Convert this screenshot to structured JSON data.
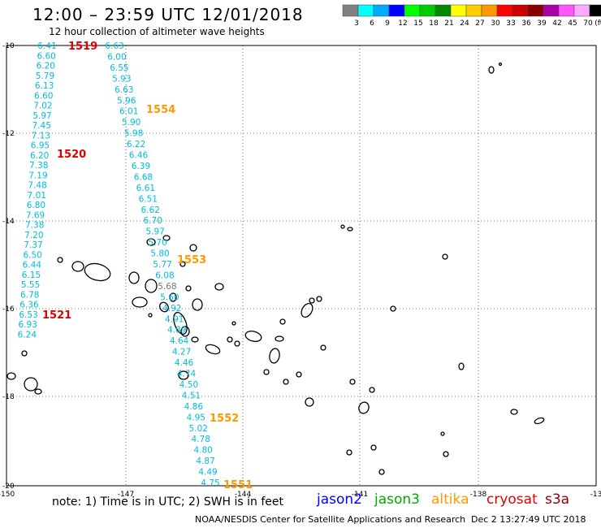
{
  "header": {
    "title": "12:00 – 23:59 UTC 12/01/2018",
    "subtitle": "12 hour collection of altimeter wave heights"
  },
  "legend": {
    "unit_label": "(ft)",
    "bins": [
      {
        "label": "3",
        "color": "#808080"
      },
      {
        "label": "6",
        "color": "#00ffff"
      },
      {
        "label": "9",
        "color": "#00aaff"
      },
      {
        "label": "12",
        "color": "#0000ff"
      },
      {
        "label": "15",
        "color": "#00ff00"
      },
      {
        "label": "18",
        "color": "#00cc00"
      },
      {
        "label": "21",
        "color": "#008800"
      },
      {
        "label": "24",
        "color": "#ffff00"
      },
      {
        "label": "27",
        "color": "#ffcc00"
      },
      {
        "label": "30",
        "color": "#ff9900"
      },
      {
        "label": "33",
        "color": "#ff0000"
      },
      {
        "label": "36",
        "color": "#cc0000"
      },
      {
        "label": "39",
        "color": "#880000"
      },
      {
        "label": "42",
        "color": "#aa00aa"
      },
      {
        "label": "45",
        "color": "#ff55ff"
      },
      {
        "label": "70",
        "color": "#ffaaff"
      },
      {
        "label": "",
        "color": "#000000"
      }
    ]
  },
  "map": {
    "lon_labels": [
      "-150",
      "-147",
      "-144",
      "-141",
      "-138",
      "-13"
    ],
    "lat_labels": [
      "-10",
      "-12",
      "-14",
      "-16",
      "-18",
      "-20"
    ]
  },
  "tracks": [
    {
      "name": "track-1519-1521",
      "color": "#00bbdd",
      "values": [
        "6.41",
        "6.60",
        "6.20",
        "5.79",
        "6.13",
        "6.60",
        "7.02",
        "5.97",
        "7.45",
        "7.13",
        "6.95",
        "6.20",
        "7.38",
        "7.19",
        "7.48",
        "7.01",
        "6.80",
        "7.69",
        "7.38",
        "7.20",
        "7.37",
        "6.50",
        "6.44",
        "6.15",
        "5.55",
        "6.78",
        "6.36",
        "6.53",
        "6.93",
        "6.24"
      ]
    },
    {
      "name": "track-1554-1551",
      "color": "#00bbdd",
      "values": [
        "6.63",
        "6.00",
        "6.55",
        "5.93",
        "6.63",
        "5.96",
        "6.01",
        "5.90",
        "5.98",
        "6.22",
        "6.46",
        "6.39",
        "6.68",
        "6.61",
        "6.51",
        "6.62",
        "6.70",
        "5.97",
        "5.70",
        "5.80",
        "5.77",
        "6.08",
        "5.68",
        "5.60",
        "4.92",
        "4.91",
        "4.89",
        "4.64",
        "4.27",
        "4.46",
        "4.74",
        "4.50",
        "4.51",
        "4.86",
        "4.95",
        "5.02",
        "4.78",
        "4.80",
        "4.87",
        "4.49",
        "4.75"
      ]
    }
  ],
  "passes": [
    {
      "label": "1519",
      "color": "#dd0000"
    },
    {
      "label": "1520",
      "color": "#dd0000"
    },
    {
      "label": "1521",
      "color": "#dd0000"
    },
    {
      "label": "1554",
      "color": "#ff9900"
    },
    {
      "label": "1553",
      "color": "#ff9900"
    },
    {
      "label": "1552",
      "color": "#ff9900"
    },
    {
      "label": "1551",
      "color": "#ff9900"
    }
  ],
  "footer": {
    "note": "note:  1) Time is in UTC;  2) SWH is in feet",
    "satellites": [
      {
        "name": "jason2",
        "color": "#0000ff"
      },
      {
        "name": "jason3",
        "color": "#00aa00"
      },
      {
        "name": "altika",
        "color": "#ff9900"
      },
      {
        "name": "cryosat",
        "color": "#dd0000"
      },
      {
        "name": "s3a",
        "color": "#880000"
      }
    ],
    "credit": "NOAA/NESDIS Center for Satellite Applications and Research",
    "timestamp": "Dec  2 13:27:49 UTC 2018"
  }
}
